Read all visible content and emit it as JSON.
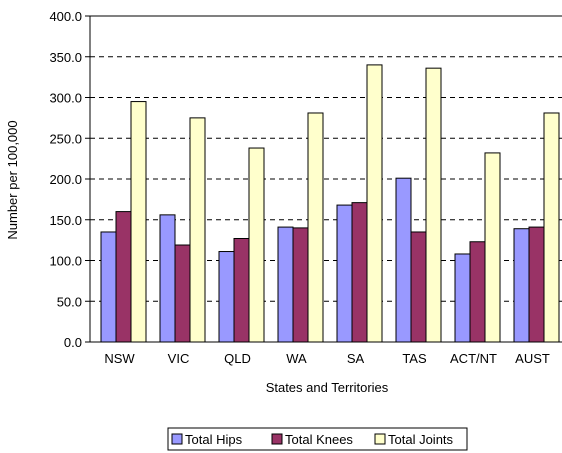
{
  "chart_data": {
    "type": "bar",
    "categories": [
      "NSW",
      "VIC",
      "QLD",
      "WA",
      "SA",
      "TAS",
      "ACT/NT",
      "AUST"
    ],
    "series": [
      {
        "name": "Total Hips",
        "color": "#9999ff",
        "values": [
          135,
          156,
          111,
          141,
          168,
          201,
          108,
          139
        ]
      },
      {
        "name": "Total Knees",
        "color": "#993366",
        "values": [
          160,
          119,
          127,
          140,
          171,
          135,
          123,
          141
        ]
      },
      {
        "name": "Total Joints",
        "color": "#ffffcc",
        "values": [
          295,
          275,
          238,
          281,
          340,
          336,
          232,
          281
        ]
      }
    ],
    "xlabel": "States and Territories",
    "ylabel": "Number per 100,000",
    "ylim": [
      0,
      400
    ],
    "yticks": [
      "0.0",
      "50.0",
      "100.0",
      "150.0",
      "200.0",
      "250.0",
      "300.0",
      "350.0",
      "400.0"
    ],
    "grid": "horizontal dashed",
    "legend_position": "bottom"
  }
}
